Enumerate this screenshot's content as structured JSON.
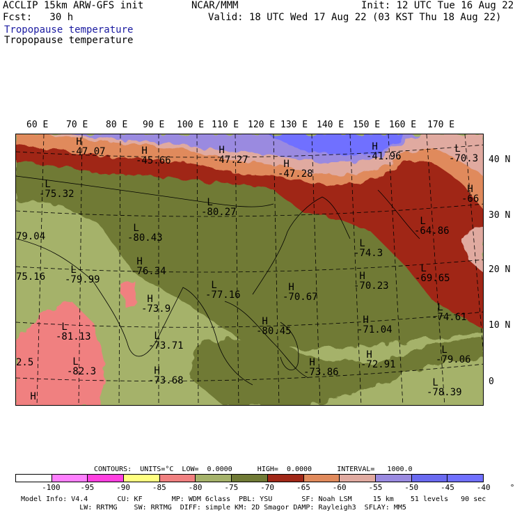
{
  "header": {
    "left_line1": "ACCLIP 15km ARW-GFS init",
    "left_line2": "Fcst:   30 h",
    "title_line1": "Tropopause temperature",
    "title_line2": "Tropopause temperature",
    "center": "NCAR/MMM",
    "init": "Init: 12 UTC Tue 16 Aug 22",
    "valid": "Valid: 18 UTC Wed 17 Aug 22 (03 KST Thu 18 Aug 22)"
  },
  "map": {
    "lon_labels": [
      "60 E",
      "70 E",
      "80 E",
      "90 E",
      "100 E",
      "110 E",
      "120 E",
      "130 E",
      "140 E",
      "150 E",
      "160 E",
      "170 E"
    ],
    "lat_labels": [
      "40 N",
      "30 N",
      "20 N",
      "10 N",
      "0"
    ],
    "features": [
      {
        "letter": "H",
        "value": "-47.07"
      },
      {
        "letter": "H",
        "value": "-45.66"
      },
      {
        "letter": "H",
        "value": "-47.27"
      },
      {
        "letter": "H",
        "value": "-47.28"
      },
      {
        "letter": "H",
        "value": "-41.96"
      },
      {
        "letter": "L",
        "value": "-70.3"
      },
      {
        "letter": "L",
        "value": "-75.32"
      },
      {
        "letter": "L",
        "value": "-80.27"
      },
      {
        "letter": "H",
        "value": "-66"
      },
      {
        "letter": "L",
        "value": "-80.43"
      },
      {
        "letter": "L",
        "value": "-64.86"
      },
      {
        "letter": "",
        "value": "79.04"
      },
      {
        "letter": "L",
        "value": "-74.3"
      },
      {
        "letter": "L",
        "value": "-79.99"
      },
      {
        "letter": "H",
        "value": "-76.34"
      },
      {
        "letter": "L",
        "value": "-69.65"
      },
      {
        "letter": "",
        "value": "75.16"
      },
      {
        "letter": "H",
        "value": "-70.23"
      },
      {
        "letter": "L",
        "value": "-77.16"
      },
      {
        "letter": "H",
        "value": "-70.67"
      },
      {
        "letter": "H",
        "value": "-73.9"
      },
      {
        "letter": "L",
        "value": "-74.61"
      },
      {
        "letter": "H",
        "value": "-71.04"
      },
      {
        "letter": "L",
        "value": "-81.13"
      },
      {
        "letter": "H",
        "value": "-80.45"
      },
      {
        "letter": "L",
        "value": "-73.71"
      },
      {
        "letter": "L",
        "value": "-79.06"
      },
      {
        "letter": "",
        "value": "2.5"
      },
      {
        "letter": "H",
        "value": "-72.91"
      },
      {
        "letter": "L",
        "value": "-82.3"
      },
      {
        "letter": "H",
        "value": "-73.86"
      },
      {
        "letter": "H",
        "value": "-73.68"
      },
      {
        "letter": "L",
        "value": "-78.39"
      },
      {
        "letter": "H",
        "value": ""
      }
    ]
  },
  "contours_line": "CONTOURS:  UNITS=°C  LOW=  0.0000      HIGH=  0.0000      INTERVAL=   1000.0",
  "colorbar": {
    "colors": [
      "#ffffff",
      "#ff80ff",
      "#ff40e0",
      "#ffff80",
      "#f08080",
      "#a5b26a",
      "#707a36",
      "#a02818",
      "#e08a5c",
      "#e0aaa0",
      "#9a8ae0",
      "#6a6af0",
      "#7070ff"
    ],
    "ticks": [
      "-100",
      "-95",
      "-90",
      "-85",
      "-80",
      "-75",
      "-70",
      "-65",
      "-60",
      "-55",
      "-50",
      "-45",
      "-40",
      "°C"
    ]
  },
  "footer": {
    "line1": "Model Info: V4.4       CU: KF       MP: WDM 6class  PBL: YSU       SF: Noah LSM     15 km    51 levels   90 sec",
    "line2": "              LW: RRTMG    SW: RRTMG  DIFF: simple KM: 2D Smagor DAMP: Rayleigh3  SFLAY: MM5"
  }
}
